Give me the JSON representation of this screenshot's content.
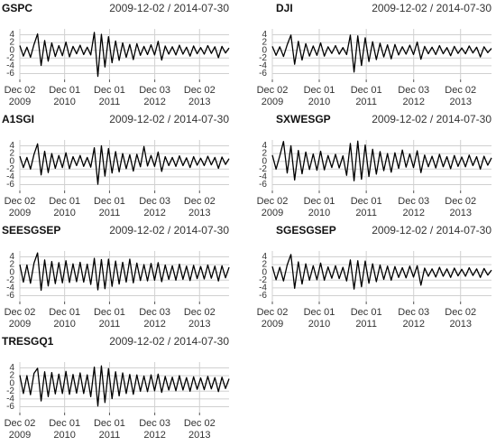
{
  "chart_data": [
    {
      "type": "line",
      "title": "GSPC",
      "subtitle": "2009-12-02 / 2014-07-30",
      "xlim": [
        "2009-12-02",
        "2014-07-30"
      ],
      "xticks": [
        {
          "value": "2009-12-02",
          "label": "Dec 02",
          "year": "2009"
        },
        {
          "value": "2010-12-01",
          "label": "Dec 01",
          "year": "2010"
        },
        {
          "value": "2011-12-01",
          "label": "Dec 01",
          "year": "2011"
        },
        {
          "value": "2012-12-03",
          "label": "Dec 03",
          "year": "2012"
        },
        {
          "value": "2013-12-02",
          "label": "Dec 02",
          "year": "2013"
        }
      ],
      "ylim": [
        -7.5,
        5.5
      ],
      "yticks": [
        -6,
        -4,
        -2,
        0,
        2,
        4
      ],
      "grid": true,
      "color": "#000000",
      "values": [
        1.2,
        -1.5,
        0.8,
        -1.8,
        1.5,
        4.2,
        -3.9,
        2.5,
        -2.8,
        1.9,
        -1.6,
        1.2,
        -1.4,
        2.1,
        -1.7,
        1.0,
        -0.9,
        1.3,
        -1.1,
        0.8,
        -1.2,
        4.6,
        -6.7,
        4.1,
        -4.3,
        3.5,
        -3.2,
        2.4,
        -2.6,
        1.9,
        -1.8,
        1.5,
        -2.4,
        1.7,
        -1.3,
        1.0,
        -1.1,
        1.4,
        -1.2,
        2.3,
        -2.5,
        1.1,
        -1.0,
        0.9,
        -1.2,
        1.3,
        -1.0,
        0.8,
        -1.5,
        1.1,
        -0.9,
        0.7,
        -1.0,
        1.2,
        -0.8,
        0.9,
        -1.9,
        1.0,
        -0.7,
        0.6
      ]
    },
    {
      "type": "line",
      "title": "DJI",
      "subtitle": "2009-12-02 / 2014-07-30",
      "xlim": [
        "2009-12-02",
        "2014-07-30"
      ],
      "xticks": [
        {
          "value": "2009-12-02",
          "label": "Dec 02",
          "year": "2009"
        },
        {
          "value": "2010-12-01",
          "label": "Dec 01",
          "year": "2010"
        },
        {
          "value": "2011-12-01",
          "label": "Dec 01",
          "year": "2011"
        },
        {
          "value": "2012-12-03",
          "label": "Dec 03",
          "year": "2012"
        },
        {
          "value": "2013-12-02",
          "label": "Dec 02",
          "year": "2013"
        }
      ],
      "ylim": [
        -7.5,
        5.5
      ],
      "yticks": [
        -6,
        -4,
        -2,
        0,
        2,
        4
      ],
      "grid": true,
      "color": "#000000",
      "values": [
        1.0,
        -1.3,
        0.9,
        -1.6,
        1.4,
        3.9,
        -3.6,
        2.3,
        -2.5,
        1.7,
        -1.5,
        1.1,
        -1.3,
        1.9,
        -1.5,
        0.9,
        -0.8,
        1.2,
        -1.0,
        0.7,
        -1.1,
        3.9,
        -5.6,
        3.7,
        -3.9,
        3.2,
        -2.9,
        2.2,
        -2.4,
        1.8,
        -1.7,
        1.4,
        -2.2,
        1.5,
        -1.2,
        0.9,
        -1.0,
        1.3,
        -1.1,
        2.1,
        -2.3,
        1.0,
        -0.9,
        0.8,
        -1.1,
        1.2,
        -0.9,
        0.7,
        -1.4,
        1.0,
        -0.8,
        0.6,
        -0.9,
        1.1,
        -0.7,
        0.8,
        -1.7,
        0.9,
        -0.6,
        0.5
      ]
    },
    {
      "type": "line",
      "title": "A1SGI",
      "subtitle": "2009-12-02 / 2014-07-30",
      "xlim": [
        "2009-12-02",
        "2014-07-30"
      ],
      "xticks": [
        {
          "value": "2009-12-02",
          "label": "Dec 02",
          "year": "2009"
        },
        {
          "value": "2010-12-01",
          "label": "Dec 01",
          "year": "2010"
        },
        {
          "value": "2011-12-01",
          "label": "Dec 01",
          "year": "2011"
        },
        {
          "value": "2012-12-03",
          "label": "Dec 03",
          "year": "2012"
        },
        {
          "value": "2013-12-02",
          "label": "Dec 02",
          "year": "2013"
        }
      ],
      "ylim": [
        -7.5,
        5.5
      ],
      "yticks": [
        -6,
        -4,
        -2,
        0,
        2,
        4
      ],
      "grid": true,
      "color": "#000000",
      "values": [
        1.3,
        -1.6,
        1.0,
        -2.0,
        1.8,
        4.5,
        -3.5,
        2.6,
        -2.9,
        2.0,
        -1.8,
        1.5,
        -1.6,
        2.2,
        -1.9,
        1.2,
        -1.1,
        1.5,
        -1.3,
        1.0,
        -1.5,
        3.5,
        -5.9,
        4.0,
        -3.8,
        3.3,
        -3.0,
        2.5,
        -2.7,
        2.0,
        -1.9,
        1.7,
        -2.5,
        1.8,
        -1.4,
        3.8,
        -1.2,
        1.5,
        -1.3,
        2.4,
        -2.6,
        1.2,
        -1.1,
        1.0,
        -1.3,
        1.4,
        -1.1,
        0.9,
        -1.6,
        1.2,
        -1.0,
        0.8,
        -1.1,
        1.3,
        -0.9,
        1.0,
        -1.8,
        1.1,
        -0.8,
        0.7
      ]
    },
    {
      "type": "line",
      "title": "SXWESGP",
      "subtitle": "2009-12-02 / 2014-07-30",
      "xlim": [
        "2009-12-02",
        "2014-07-30"
      ],
      "xticks": [
        {
          "value": "2009-12-02",
          "label": "Dec 02",
          "year": "2009"
        },
        {
          "value": "2010-12-01",
          "label": "Dec 01",
          "year": "2010"
        },
        {
          "value": "2011-12-01",
          "label": "Dec 01",
          "year": "2011"
        },
        {
          "value": "2012-12-03",
          "label": "Dec 03",
          "year": "2012"
        },
        {
          "value": "2013-12-02",
          "label": "Dec 02",
          "year": "2013"
        }
      ],
      "ylim": [
        -7.5,
        5.5
      ],
      "yticks": [
        -6,
        -4,
        -2,
        0,
        2,
        4
      ],
      "grid": true,
      "color": "#000000",
      "values": [
        1.6,
        -2.0,
        1.4,
        5.1,
        -3.0,
        4.0,
        -4.8,
        2.8,
        -3.2,
        2.4,
        -2.1,
        1.9,
        -2.3,
        2.6,
        -2.2,
        1.5,
        -1.6,
        1.8,
        -1.7,
        1.4,
        -3.6,
        4.6,
        -5.0,
        5.2,
        -4.6,
        4.2,
        -3.9,
        3.1,
        -3.3,
        2.5,
        -2.4,
        2.0,
        -2.8,
        2.2,
        -1.8,
        2.9,
        -1.5,
        1.9,
        -1.6,
        2.7,
        -2.9,
        1.6,
        -1.4,
        1.3,
        -1.7,
        1.8,
        -1.4,
        1.2,
        -1.9,
        1.5,
        -1.3,
        1.1,
        -1.4,
        1.6,
        -1.1,
        1.2,
        -2.0,
        1.3,
        -1.0,
        0.9
      ]
    },
    {
      "type": "line",
      "title": "SEESGSEP",
      "subtitle": "2009-12-02 / 2014-07-30",
      "xlim": [
        "2009-12-02",
        "2014-07-30"
      ],
      "xticks": [
        {
          "value": "2009-12-02",
          "label": "Dec 02",
          "year": "2009"
        },
        {
          "value": "2010-12-01",
          "label": "Dec 01",
          "year": "2010"
        },
        {
          "value": "2011-12-01",
          "label": "Dec 01",
          "year": "2011"
        },
        {
          "value": "2012-12-03",
          "label": "Dec 03",
          "year": "2012"
        },
        {
          "value": "2013-12-02",
          "label": "Dec 02",
          "year": "2013"
        }
      ],
      "ylim": [
        -7.5,
        5.5
      ],
      "yticks": [
        -6,
        -4,
        -2,
        0,
        2,
        4
      ],
      "grid": true,
      "color": "#000000",
      "values": [
        2.0,
        -2.5,
        1.9,
        -2.8,
        2.4,
        5.0,
        -4.6,
        3.2,
        -3.5,
        2.8,
        -2.9,
        2.5,
        -2.7,
        3.0,
        -2.6,
        2.2,
        -2.4,
        2.6,
        -2.5,
        2.1,
        -3.1,
        3.6,
        -4.5,
        3.3,
        -4.2,
        3.4,
        -3.6,
        2.9,
        -3.0,
        2.6,
        -2.5,
        3.4,
        -2.7,
        2.4,
        -2.1,
        2.0,
        -2.2,
        2.3,
        -2.0,
        2.5,
        -2.4,
        1.9,
        -1.8,
        1.7,
        -2.0,
        2.1,
        -1.8,
        1.6,
        -2.1,
        1.8,
        -1.6,
        1.5,
        -1.7,
        1.9,
        -1.5,
        1.6,
        -2.2,
        1.7,
        -1.4,
        1.3
      ]
    },
    {
      "type": "line",
      "title": "SGESGSEP",
      "subtitle": "2009-12-02 / 2014-07-30",
      "xlim": [
        "2009-12-02",
        "2014-07-30"
      ],
      "xticks": [
        {
          "value": "2009-12-02",
          "label": "Dec 02",
          "year": "2009"
        },
        {
          "value": "2010-12-01",
          "label": "Dec 01",
          "year": "2010"
        },
        {
          "value": "2011-12-01",
          "label": "Dec 01",
          "year": "2011"
        },
        {
          "value": "2012-12-03",
          "label": "Dec 03",
          "year": "2012"
        },
        {
          "value": "2013-12-02",
          "label": "Dec 02",
          "year": "2013"
        }
      ],
      "ylim": [
        -7.5,
        5.5
      ],
      "yticks": [
        -6,
        -4,
        -2,
        0,
        2,
        4
      ],
      "grid": true,
      "color": "#000000",
      "values": [
        1.5,
        -1.9,
        1.3,
        -2.2,
        1.9,
        4.6,
        -4.1,
        2.7,
        -3.0,
        2.2,
        -2.0,
        1.7,
        -1.9,
        2.4,
        -2.0,
        1.4,
        -1.5,
        1.7,
        -1.6,
        1.3,
        -2.2,
        3.2,
        -4.3,
        3.0,
        -3.7,
        2.9,
        -2.8,
        2.2,
        -2.4,
        1.9,
        -1.8,
        1.6,
        -2.0,
        1.5,
        -1.3,
        1.2,
        -1.4,
        1.6,
        -1.2,
        1.7,
        -3.3,
        1.1,
        -1.0,
        0.9,
        -1.2,
        1.3,
        -1.0,
        0.9,
        -1.3,
        1.1,
        -0.9,
        0.8,
        -1.0,
        1.2,
        -0.8,
        0.9,
        -1.3,
        1.0,
        -0.7,
        0.6
      ]
    },
    {
      "type": "line",
      "title": "TRESGQ1",
      "subtitle": "2009-12-02 / 2014-07-30",
      "xlim": [
        "2009-12-02",
        "2014-07-30"
      ],
      "xticks": [
        {
          "value": "2009-12-02",
          "label": "Dec 02",
          "year": "2009"
        },
        {
          "value": "2010-12-01",
          "label": "Dec 01",
          "year": "2010"
        },
        {
          "value": "2011-12-01",
          "label": "Dec 01",
          "year": "2011"
        },
        {
          "value": "2012-12-03",
          "label": "Dec 03",
          "year": "2012"
        },
        {
          "value": "2013-12-02",
          "label": "Dec 02",
          "year": "2013"
        }
      ],
      "ylim": [
        -7.5,
        5.5
      ],
      "yticks": [
        -6,
        -4,
        -2,
        0,
        2,
        4
      ],
      "grid": true,
      "color": "#000000",
      "values": [
        2.1,
        -2.6,
        2.0,
        -2.9,
        2.6,
        3.9,
        -4.5,
        3.0,
        -3.4,
        2.8,
        -2.7,
        2.4,
        -2.6,
        3.1,
        -2.8,
        2.3,
        -2.5,
        2.7,
        -2.6,
        2.2,
        -3.4,
        4.2,
        -5.8,
        4.5,
        -4.9,
        3.8,
        -3.9,
        3.0,
        -3.2,
        2.7,
        -2.6,
        2.3,
        -2.8,
        2.2,
        -2.0,
        1.9,
        -2.1,
        2.2,
        -1.9,
        2.4,
        -2.3,
        1.8,
        -1.7,
        1.6,
        -1.9,
        2.0,
        -1.7,
        1.5,
        -2.0,
        1.7,
        -1.5,
        1.4,
        -1.6,
        1.8,
        -1.4,
        1.5,
        -2.1,
        1.6,
        -1.3,
        1.2
      ]
    }
  ]
}
